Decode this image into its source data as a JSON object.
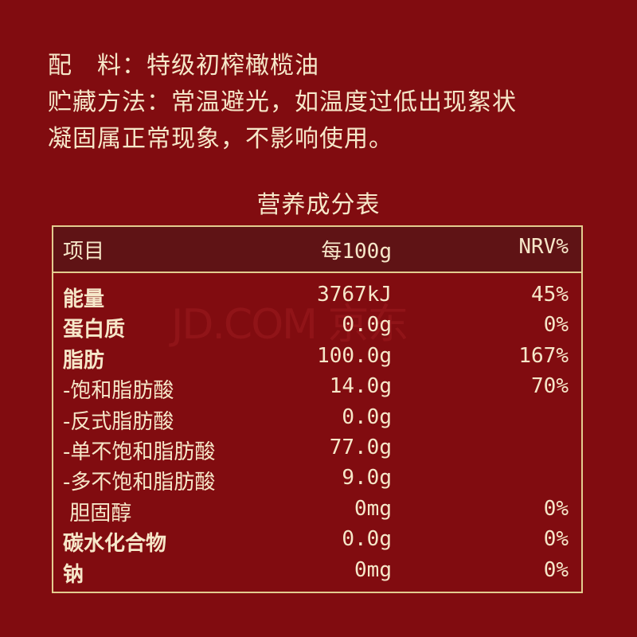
{
  "info": {
    "line1": "配　料：特级初榨橄榄油",
    "line2": "贮藏方法：常温避光，如温度过低出现絮状",
    "line3": "凝固属正常现象，不影响使用。"
  },
  "table": {
    "title": "营养成分表",
    "headers": [
      "项目",
      "每100g",
      "NRV%"
    ],
    "rows": [
      {
        "name": "能量",
        "value": "3767kJ",
        "nrv": "45%",
        "bold": true
      },
      {
        "name": "蛋白质",
        "value": "0.0g",
        "nrv": "0%",
        "bold": true
      },
      {
        "name": "脂肪",
        "value": "100.0g",
        "nrv": "167%",
        "bold": true
      },
      {
        "name": "-饱和脂肪酸",
        "value": "14.0g",
        "nrv": "70%",
        "bold": false
      },
      {
        "name": "-反式脂肪酸",
        "value": "0.0g",
        "nrv": "",
        "bold": false
      },
      {
        "name": "-单不饱和脂肪酸",
        "value": "77.0g",
        "nrv": "",
        "bold": false
      },
      {
        "name": "-多不饱和脂肪酸",
        "value": "9.0g",
        "nrv": "",
        "bold": false
      },
      {
        "name": " 胆固醇",
        "value": "0mg",
        "nrv": "0%",
        "bold": false
      },
      {
        "name": "碳水化合物",
        "value": "0.0g",
        "nrv": "0%",
        "bold": true
      },
      {
        "name": "钠",
        "value": "0mg",
        "nrv": "0%",
        "bold": true
      }
    ]
  },
  "watermark": "JD.COM 京东",
  "colors": {
    "background": "#810c10",
    "header": "#5f1315",
    "text": "#f6e7c9",
    "border": "#e3cc8f"
  }
}
